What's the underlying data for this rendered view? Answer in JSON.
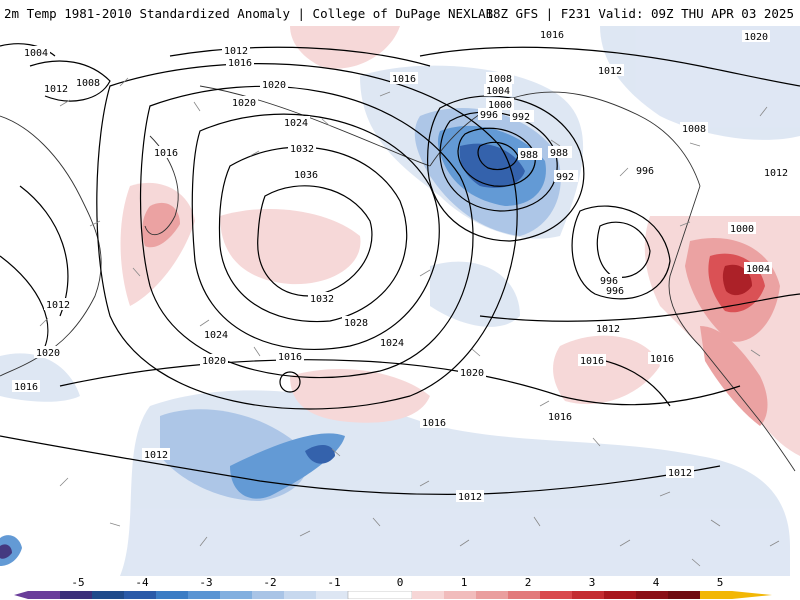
{
  "header": {
    "left_title": "2m Temp 1981-2010 Standardized Anomaly | College of DuPage NEXLAB",
    "right_title": "18Z GFS | F231 Valid: 09Z THU APR 03 2025"
  },
  "colors": {
    "contour": "#000000",
    "coast": "#333333",
    "cold_1": "#dde6f3",
    "cold_2": "#a9c4e6",
    "cold_3": "#5b95d3",
    "cold_4": "#2a5aa8",
    "cold_5": "#3b2f7a",
    "warm_1": "#f6d6d6",
    "warm_2": "#ea9e9e",
    "warm_3": "#d9484c",
    "warm_4": "#a8161d",
    "warm_5": "#f2b705"
  },
  "isobar_labels": [
    "1004",
    "1012",
    "1008",
    "1012",
    "1016",
    "1020",
    "1020",
    "1016",
    "1024",
    "1032",
    "1036",
    "1016",
    "1008",
    "1004",
    "1000",
    "996",
    "992",
    "988",
    "992",
    "996",
    "1012",
    "1020",
    "1016",
    "996",
    "1012",
    "1024",
    "1032",
    "1028",
    "1024",
    "1020",
    "1016",
    "1020",
    "1016",
    "1016",
    "1016",
    "1012",
    "1012",
    "1012",
    "1012",
    "1016",
    "1016",
    "988",
    "996",
    "1000",
    "1004",
    "1012",
    "1008",
    "1020"
  ],
  "colorbar": {
    "labels": [
      "-5",
      "-4",
      "-3",
      "-2",
      "-1",
      "0",
      "1",
      "2",
      "3",
      "4",
      "5"
    ]
  }
}
